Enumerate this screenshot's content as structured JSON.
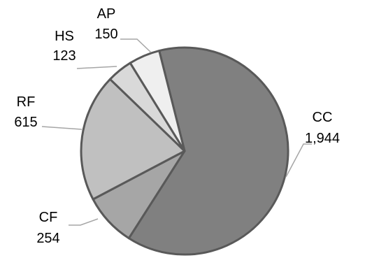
{
  "chart_data": {
    "type": "pie",
    "start_angle_deg": -14.2,
    "direction": "clockwise",
    "slices": [
      {
        "label": "CC",
        "value": 1944,
        "value_text": "1,944",
        "color": "#808080"
      },
      {
        "label": "CF",
        "value": 254,
        "value_text": "254",
        "color": "#a6a6a6"
      },
      {
        "label": "RF",
        "value": 615,
        "value_text": "615",
        "color": "#c0c0c0"
      },
      {
        "label": "HS",
        "value": 123,
        "value_text": "123",
        "color": "#d9d9d9"
      },
      {
        "label": "AP",
        "value": 150,
        "value_text": "150",
        "color": "#efefef"
      }
    ],
    "stroke_color": "#595959",
    "leader_color": "#a6a6a6"
  }
}
